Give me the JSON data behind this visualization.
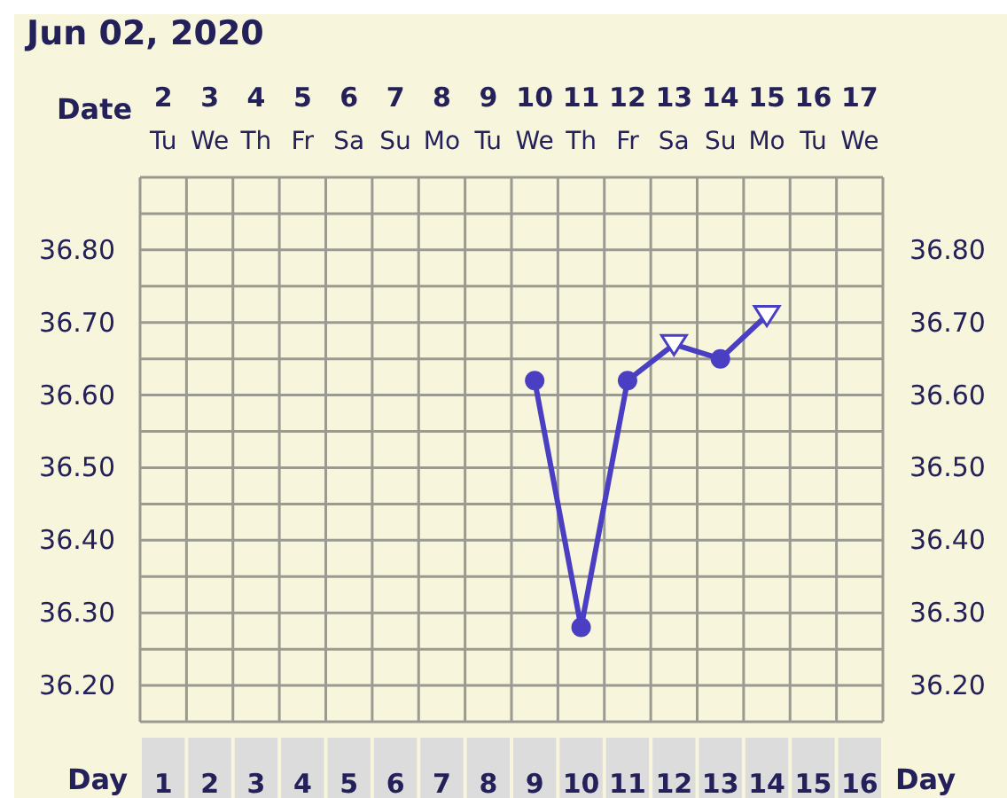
{
  "chart_data": {
    "type": "line",
    "title": "Jun 02, 2020",
    "xlabel": "Day",
    "x2label": "Date",
    "categories": [
      "1",
      "2",
      "3",
      "4",
      "5",
      "6",
      "7",
      "8",
      "9",
      "10",
      "11",
      "12",
      "13",
      "14",
      "15",
      "16"
    ],
    "x2lim": [
      1.5,
      17.5
    ],
    "x2ticks": [
      2,
      3,
      4,
      5,
      6,
      7,
      8,
      9,
      10,
      11,
      12,
      13,
      14,
      15,
      16,
      17
    ],
    "annotations": [
      "Tu",
      "We",
      "Th",
      "Fr",
      "Sa",
      "Su",
      "Mo",
      "Tu",
      "We",
      "Th",
      "Fr",
      "Sa",
      "Su",
      "Mo",
      "Tu",
      "We"
    ],
    "ylim": [
      36.15,
      36.9
    ],
    "yticks": [
      {
        "value": 36.15,
        "label": null
      },
      {
        "value": 36.2,
        "label": "36.20"
      },
      {
        "value": 36.25,
        "label": null
      },
      {
        "value": 36.3,
        "label": "36.30"
      },
      {
        "value": 36.35,
        "label": null
      },
      {
        "value": 36.4,
        "label": "36.40"
      },
      {
        "value": 36.45,
        "label": null
      },
      {
        "value": 36.5,
        "label": "36.50"
      },
      {
        "value": 36.55,
        "label": null
      },
      {
        "value": 36.6,
        "label": "36.60"
      },
      {
        "value": 36.65,
        "label": null
      },
      {
        "value": 36.7,
        "label": "36.70"
      },
      {
        "value": 36.75,
        "label": null
      },
      {
        "value": 36.8,
        "label": "36.80"
      },
      {
        "value": 36.85,
        "label": null
      },
      {
        "value": 36.9,
        "label": null
      }
    ],
    "y2lim": [
      36.15,
      36.9
    ],
    "y2ticks": [
      {
        "value": 36.2,
        "label": "36.20"
      },
      {
        "value": 36.3,
        "label": "36.30"
      },
      {
        "value": 36.4,
        "label": "36.40"
      },
      {
        "value": 36.5,
        "label": "36.50"
      },
      {
        "value": 36.6,
        "label": "36.60"
      },
      {
        "value": 36.7,
        "label": "36.70"
      },
      {
        "value": 36.8,
        "label": "36.80"
      }
    ],
    "grid": true,
    "legend": false,
    "series": [
      {
        "marker": "none",
        "color": "#4a3fc2",
        "values": [
          null,
          null,
          null,
          null,
          null,
          null,
          null,
          null,
          36.62,
          36.28,
          36.62,
          36.67,
          36.65,
          36.71,
          null,
          null
        ]
      },
      {
        "type": "scatter",
        "marker": "circle",
        "color": "#4a3fc2",
        "values": [
          null,
          null,
          null,
          null,
          null,
          null,
          null,
          null,
          36.62,
          36.28,
          36.62,
          null,
          36.65,
          null,
          null,
          null
        ]
      },
      {
        "type": "scatter",
        "marker": "triangle",
        "color": "#4a3fc2",
        "values": [
          null,
          null,
          null,
          null,
          null,
          null,
          null,
          null,
          null,
          null,
          null,
          36.67,
          null,
          36.71,
          null,
          null
        ]
      }
    ]
  }
}
